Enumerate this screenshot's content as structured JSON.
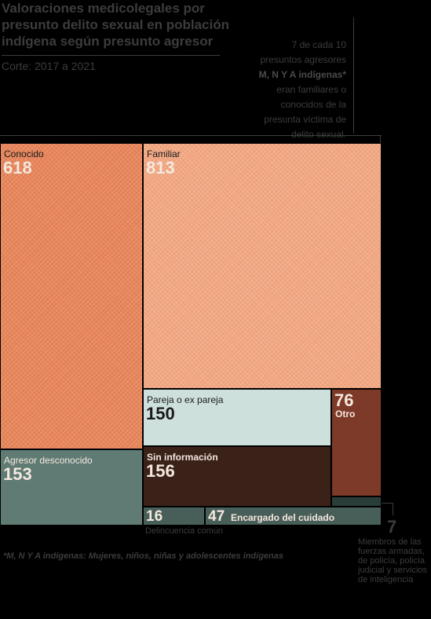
{
  "title": "Valoraciones medicolegales por presunto delito sexual en población indígena según presunto agresor",
  "subtitle": "Corte: 2017 a 2021",
  "note": {
    "line1": "7 de cada 10",
    "line2": "presuntos agresores",
    "bold": "M, N Y A indígenas*",
    "line3": "eran familiares o",
    "line4": "conocidos de la",
    "line5": "presunta víctima de",
    "line6": "delito sexual."
  },
  "footnote": "*M, N Y A indígenas: Mujeres, niños, niñas y adolescentes indígenas",
  "colors": {
    "conocido": "#e8855a",
    "familiar": "#f4a882",
    "desconocido": "#5f7b74",
    "pareja": "#cde0dc",
    "sin_info": "#3a2219",
    "otro": "#7e3a29",
    "delincuencia": "#485e58",
    "encargado": "#485e58",
    "fuerzas": "#2a3e39"
  },
  "chart_data": {
    "type": "treemap",
    "title": "Valoraciones medicolegales por presunto delito sexual en población indígena según presunto agresor",
    "subtitle": "Corte: 2017 a 2021",
    "categories": [
      "Conocido",
      "Familiar",
      "Agresor desconocido",
      "Pareja o ex pareja",
      "Sin información",
      "Otro",
      "Delincuencia común",
      "Encargado del cuidado",
      "Miembros de las fuerzas armadas, de policía, policía judicial y servicios de inteligencia"
    ],
    "values": [
      618,
      813,
      153,
      150,
      156,
      76,
      16,
      47,
      7
    ]
  },
  "cells": {
    "conocido": {
      "label": "Conocido",
      "value": "618"
    },
    "familiar": {
      "label": "Familiar",
      "value": "813"
    },
    "desconocido": {
      "label": "Agresor desconocido",
      "value": "153"
    },
    "pareja": {
      "label": "Pareja o ex pareja",
      "value": "150"
    },
    "sin_info": {
      "label": "Sin información",
      "value": "156"
    },
    "otro": {
      "label": "Otro",
      "value": "76"
    },
    "delincuencia": {
      "label": "Delincuencia común",
      "value": "16"
    },
    "encargado": {
      "label": "Encargado del cuidado",
      "value": "47"
    },
    "fuerzas": {
      "label": "Miembros de las fuerzas armadas, de policía, policía judicial y servicios de inteligencia",
      "value": "7"
    }
  }
}
